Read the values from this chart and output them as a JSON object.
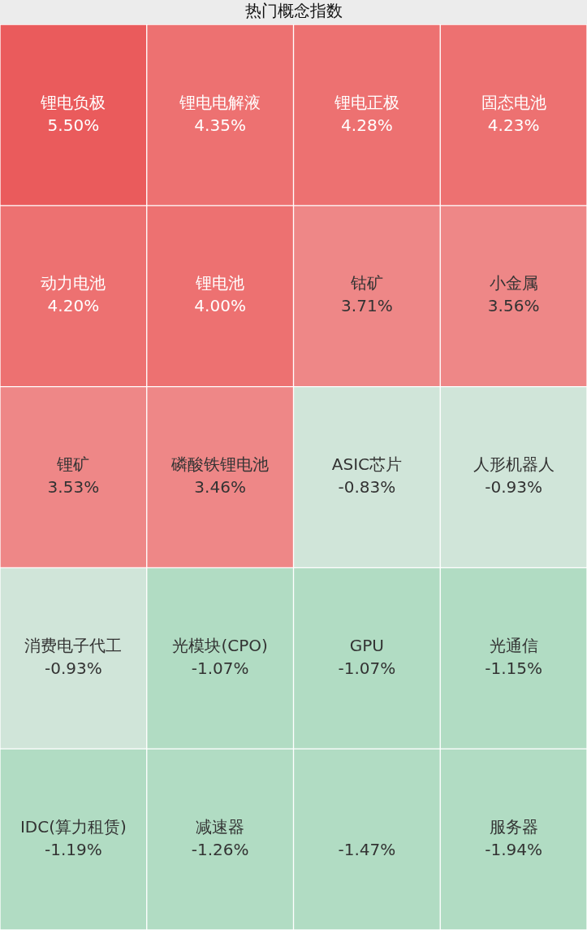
{
  "chart_data": {
    "type": "other",
    "title": "热门概念指数",
    "categories": [
      "锂电负极",
      "锂电电解液",
      "锂电正极",
      "固态电池",
      "动力电池",
      "锂电池",
      "钴矿",
      "小金属",
      "锂矿",
      "磷酸铁锂电池",
      "ASIC芯片",
      "人形机器人",
      "消费电子代工",
      "光模块(CPO)",
      "GPU",
      "光通信",
      "IDC(算力租赁)",
      "减速器",
      null,
      "服务器"
    ],
    "values": [
      5.5,
      4.35,
      4.28,
      4.23,
      4.2,
      4.0,
      3.71,
      3.56,
      3.53,
      3.46,
      -0.83,
      -0.93,
      -0.93,
      -1.07,
      -1.07,
      -1.15,
      -1.19,
      -1.26,
      -1.47,
      -1.94
    ],
    "value_labels": [
      "5.50%",
      "4.35%",
      "4.28%",
      "4.23%",
      "4.20%",
      "4.00%",
      "3.71%",
      "3.56%",
      "3.53%",
      "3.46%",
      "-0.83%",
      "-0.93%",
      "-0.93%",
      "-1.07%",
      "-1.07%",
      "-1.15%",
      "-1.19%",
      "-1.26%",
      "-1.47%",
      "-1.94%"
    ],
    "colors": [
      "#ea5b5c",
      "#ed7171",
      "#ed7171",
      "#ed7171",
      "#ed7171",
      "#ed7171",
      "#ee8787",
      "#ee8787",
      "#ee8787",
      "#ee8787",
      "#d0e5d9",
      "#d0e5d9",
      "#d0e5d9",
      "#b1dcc3",
      "#b1dcc3",
      "#b1dcc3",
      "#b1dcc3",
      "#b1dcc3",
      "#b1dcc3",
      "#b1dcc3"
    ]
  }
}
